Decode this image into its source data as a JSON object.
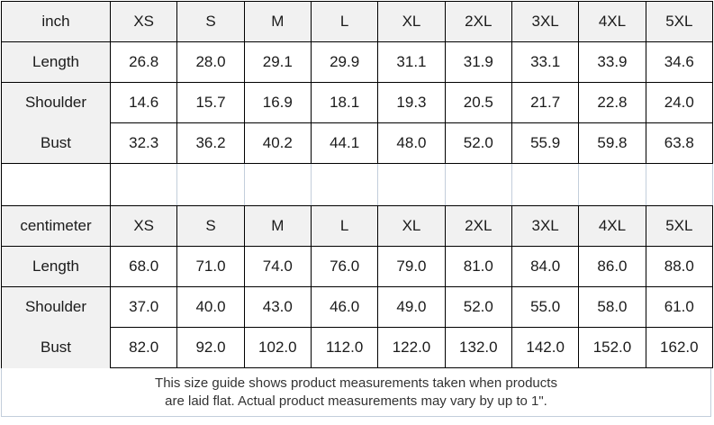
{
  "colors": {
    "header_fill": "#f1f1f1",
    "grid_border": "#000000",
    "light_border": "#c3cedb",
    "text_primary": "#1b1b1b",
    "footer_text": "#333333"
  },
  "size_guide": {
    "tables": [
      {
        "unit_label": "inch",
        "size_headers": [
          "XS",
          "S",
          "M",
          "L",
          "XL",
          "2XL",
          "3XL",
          "4XL",
          "5XL"
        ],
        "rows": [
          {
            "label": "Length",
            "values": [
              "26.8",
              "28.0",
              "29.1",
              "29.9",
              "31.1",
              "31.9",
              "33.1",
              "33.9",
              "34.6"
            ]
          },
          {
            "label": "Shoulder",
            "values": [
              "14.6",
              "15.7",
              "16.9",
              "18.1",
              "19.3",
              "20.5",
              "21.7",
              "22.8",
              "24.0"
            ]
          },
          {
            "label": "Bust",
            "values": [
              "32.3",
              "36.2",
              "40.2",
              "44.1",
              "48.0",
              "52.0",
              "55.9",
              "59.8",
              "63.8"
            ]
          }
        ]
      },
      {
        "unit_label": "centimeter",
        "size_headers": [
          "XS",
          "S",
          "M",
          "L",
          "XL",
          "2XL",
          "3XL",
          "4XL",
          "5XL"
        ],
        "rows": [
          {
            "label": "Length",
            "values": [
              "68.0",
              "71.0",
              "74.0",
              "76.0",
              "79.0",
              "81.0",
              "84.0",
              "86.0",
              "88.0"
            ]
          },
          {
            "label": "Shoulder",
            "values": [
              "37.0",
              "40.0",
              "43.0",
              "46.0",
              "49.0",
              "52.0",
              "55.0",
              "58.0",
              "61.0"
            ]
          },
          {
            "label": "Bust",
            "values": [
              "82.0",
              "92.0",
              "102.0",
              "112.0",
              "122.0",
              "132.0",
              "142.0",
              "152.0",
              "162.0"
            ]
          }
        ]
      }
    ],
    "footer_note": {
      "line1": "This size guide shows product measurements taken when products",
      "line2": "are laid flat. Actual product measurements may vary by up to 1\"."
    }
  }
}
